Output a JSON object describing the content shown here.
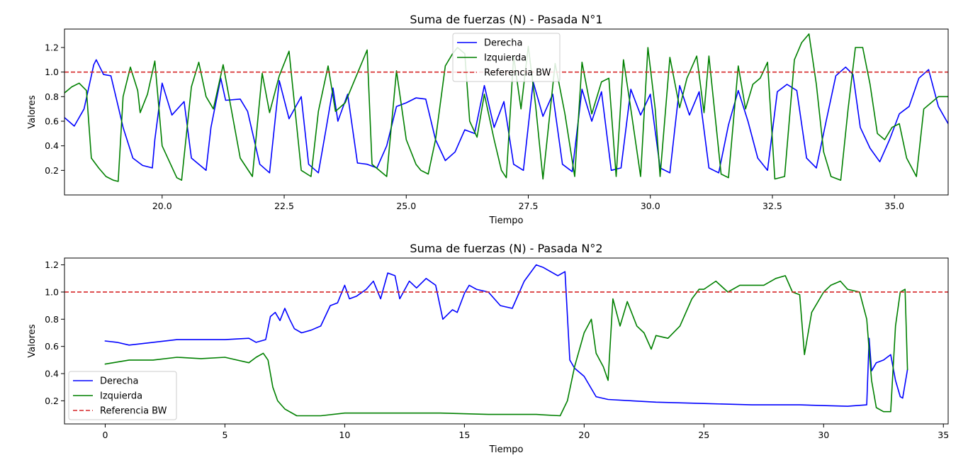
{
  "chart_data": [
    {
      "type": "line",
      "title": "Suma de fuerzas (N) - Pasada N°1",
      "xlabel": "Tiempo",
      "ylabel": "Valores",
      "xlim": [
        18.0,
        36.1
      ],
      "ylim": [
        0.0,
        1.35
      ],
      "xticks": [
        "20.0",
        "22.5",
        "25.0",
        "27.5",
        "30.0",
        "32.5",
        "35.0"
      ],
      "xtick_values": [
        20.0,
        22.5,
        25.0,
        27.5,
        30.0,
        32.5,
        35.0
      ],
      "yticks": [
        "0.2",
        "0.4",
        "0.6",
        "0.8",
        "1.0",
        "1.2"
      ],
      "ytick_values": [
        0.2,
        0.4,
        0.6,
        0.8,
        1.0,
        1.2
      ],
      "legend_position": "upper-center",
      "reference": {
        "name": "Referencia BW",
        "value": 1.0,
        "color": "#d62728",
        "style": "dashed"
      },
      "series": [
        {
          "name": "Derecha",
          "color": "#0000ff",
          "x": [
            18.0,
            18.2,
            18.4,
            18.6,
            18.65,
            18.8,
            18.95,
            19.1,
            19.2,
            19.4,
            19.6,
            19.8,
            19.85,
            20.0,
            20.2,
            20.45,
            20.6,
            20.9,
            21.0,
            21.2,
            21.3,
            21.6,
            21.75,
            22.0,
            22.2,
            22.4,
            22.6,
            22.85,
            23.0,
            23.2,
            23.35,
            23.5,
            23.6,
            23.8,
            24.0,
            24.2,
            24.4,
            24.6,
            24.8,
            25.0,
            25.2,
            25.4,
            25.6,
            25.8,
            26.0,
            26.2,
            26.4,
            26.6,
            26.8,
            27.0,
            27.2,
            27.4,
            27.6,
            27.8,
            28.0,
            28.2,
            28.4,
            28.6,
            28.8,
            29.0,
            29.2,
            29.4,
            29.6,
            29.8,
            30.0,
            30.2,
            30.4,
            30.6,
            30.8,
            31.0,
            31.2,
            31.4,
            31.6,
            31.8,
            32.0,
            32.2,
            32.4,
            32.6,
            32.8,
            33.0,
            33.2,
            33.4,
            33.6,
            33.8,
            34.0,
            34.15,
            34.3,
            34.5,
            34.7,
            34.9,
            35.1,
            35.3,
            35.5,
            35.7,
            35.9,
            36.1
          ],
          "y": [
            0.63,
            0.56,
            0.7,
            1.06,
            1.1,
            0.98,
            0.97,
            0.72,
            0.55,
            0.3,
            0.24,
            0.22,
            0.45,
            0.91,
            0.65,
            0.76,
            0.3,
            0.2,
            0.55,
            0.95,
            0.77,
            0.78,
            0.68,
            0.25,
            0.18,
            0.93,
            0.62,
            0.8,
            0.25,
            0.18,
            0.52,
            0.87,
            0.6,
            0.82,
            0.26,
            0.25,
            0.22,
            0.4,
            0.72,
            0.75,
            0.79,
            0.78,
            0.45,
            0.28,
            0.35,
            0.53,
            0.5,
            0.89,
            0.55,
            0.76,
            0.25,
            0.2,
            0.92,
            0.64,
            0.82,
            0.25,
            0.19,
            0.86,
            0.6,
            0.84,
            0.2,
            0.22,
            0.86,
            0.65,
            0.82,
            0.22,
            0.18,
            0.89,
            0.65,
            0.84,
            0.22,
            0.18,
            0.57,
            0.85,
            0.6,
            0.3,
            0.2,
            0.84,
            0.9,
            0.85,
            0.3,
            0.22,
            0.6,
            0.97,
            1.04,
            0.98,
            0.55,
            0.38,
            0.27,
            0.45,
            0.66,
            0.72,
            0.95,
            1.02,
            0.72,
            0.58
          ]
        },
        {
          "name": "Izquierda",
          "color": "#008000",
          "x": [
            18.0,
            18.15,
            18.3,
            18.45,
            18.55,
            18.7,
            18.85,
            19.0,
            19.1,
            19.2,
            19.35,
            19.5,
            19.55,
            19.7,
            19.85,
            20.0,
            20.3,
            20.4,
            20.6,
            20.75,
            20.9,
            21.05,
            21.25,
            21.6,
            21.85,
            22.05,
            22.2,
            22.4,
            22.6,
            22.85,
            23.05,
            23.2,
            23.4,
            23.55,
            23.75,
            24.2,
            24.3,
            24.6,
            24.8,
            25.0,
            25.2,
            25.3,
            25.45,
            25.6,
            25.8,
            25.95,
            26.05,
            26.2,
            26.3,
            26.45,
            26.6,
            26.8,
            26.95,
            27.05,
            27.2,
            27.35,
            27.5,
            27.65,
            27.8,
            28.05,
            28.25,
            28.45,
            28.6,
            28.8,
            29.0,
            29.15,
            29.3,
            29.45,
            29.6,
            29.8,
            29.95,
            30.1,
            30.2,
            30.4,
            30.6,
            30.75,
            30.95,
            31.1,
            31.2,
            31.45,
            31.6,
            31.8,
            31.95,
            32.1,
            32.25,
            32.4,
            32.55,
            32.75,
            32.95,
            33.1,
            33.25,
            33.4,
            33.55,
            33.7,
            33.9,
            34.05,
            34.2,
            34.35,
            34.5,
            34.65,
            34.8,
            34.95,
            35.1,
            35.25,
            35.45,
            35.6,
            35.75,
            35.9,
            36.1
          ],
          "y": [
            0.83,
            0.88,
            0.91,
            0.85,
            0.3,
            0.22,
            0.15,
            0.12,
            0.11,
            0.8,
            1.04,
            0.85,
            0.67,
            0.82,
            1.09,
            0.4,
            0.14,
            0.12,
            0.88,
            1.08,
            0.8,
            0.7,
            1.06,
            0.3,
            0.15,
            0.99,
            0.67,
            0.97,
            1.17,
            0.2,
            0.15,
            0.68,
            1.05,
            0.68,
            0.75,
            1.18,
            0.25,
            0.15,
            1.01,
            0.45,
            0.25,
            0.2,
            0.17,
            0.45,
            1.05,
            1.15,
            1.2,
            1.15,
            0.6,
            0.47,
            0.82,
            0.45,
            0.2,
            0.14,
            1.13,
            0.7,
            1.21,
            0.73,
            0.13,
            1.07,
            0.66,
            0.15,
            1.08,
            0.66,
            0.92,
            0.95,
            0.15,
            1.1,
            0.7,
            0.15,
            1.2,
            0.7,
            0.15,
            1.12,
            0.71,
            0.95,
            1.13,
            0.67,
            1.13,
            0.17,
            0.14,
            1.05,
            0.7,
            0.9,
            0.95,
            1.08,
            0.13,
            0.15,
            1.1,
            1.24,
            1.31,
            0.9,
            0.35,
            0.15,
            0.12,
            0.7,
            1.2,
            1.2,
            0.9,
            0.5,
            0.45,
            0.55,
            0.58,
            0.3,
            0.15,
            0.7,
            0.75,
            0.8,
            0.8
          ]
        }
      ]
    },
    {
      "type": "line",
      "title": "Suma de fuerzas (N) - Pasada N°2",
      "xlabel": "Tiempo",
      "ylabel": "Valores",
      "xlim": [
        -1.7,
        35.2
      ],
      "ylim": [
        0.03,
        1.25
      ],
      "xticks": [
        "0",
        "5",
        "10",
        "15",
        "20",
        "25",
        "30",
        "35"
      ],
      "xtick_values": [
        0,
        5,
        10,
        15,
        20,
        25,
        30,
        35
      ],
      "yticks": [
        "0.2",
        "0.4",
        "0.6",
        "0.8",
        "1.0",
        "1.2"
      ],
      "ytick_values": [
        0.2,
        0.4,
        0.6,
        0.8,
        1.0,
        1.2
      ],
      "legend_position": "lower-left",
      "reference": {
        "name": "Referencia BW",
        "value": 1.0,
        "color": "#d62728",
        "style": "dashed"
      },
      "series": [
        {
          "name": "Derecha",
          "color": "#0000ff",
          "x": [
            0.0,
            0.5,
            1.0,
            2.0,
            3.0,
            4.0,
            5.0,
            6.0,
            6.3,
            6.7,
            6.9,
            7.1,
            7.3,
            7.5,
            7.7,
            7.9,
            8.2,
            8.6,
            9.0,
            9.4,
            9.7,
            10.0,
            10.2,
            10.5,
            10.9,
            11.2,
            11.5,
            11.8,
            12.1,
            12.3,
            12.7,
            13.0,
            13.4,
            13.8,
            14.1,
            14.5,
            14.7,
            15.0,
            15.2,
            15.5,
            16.0,
            16.5,
            17.0,
            17.5,
            18.0,
            18.3,
            18.6,
            18.9,
            19.2,
            19.4,
            19.6,
            20.0,
            20.5,
            21.0,
            22.0,
            23.0,
            25.0,
            27.0,
            29.0,
            31.0,
            31.8,
            31.9,
            32.0,
            32.2,
            32.5,
            32.8,
            33.0,
            33.2,
            33.3,
            33.5
          ],
          "y": [
            0.64,
            0.63,
            0.61,
            0.63,
            0.65,
            0.65,
            0.65,
            0.66,
            0.63,
            0.65,
            0.82,
            0.85,
            0.79,
            0.88,
            0.8,
            0.73,
            0.7,
            0.72,
            0.75,
            0.9,
            0.92,
            1.05,
            0.95,
            0.97,
            1.02,
            1.08,
            0.95,
            1.14,
            1.12,
            0.95,
            1.08,
            1.03,
            1.1,
            1.05,
            0.8,
            0.87,
            0.85,
            0.99,
            1.05,
            1.02,
            1.0,
            0.9,
            0.88,
            1.08,
            1.2,
            1.18,
            1.15,
            1.12,
            1.15,
            0.5,
            0.44,
            0.38,
            0.23,
            0.21,
            0.2,
            0.19,
            0.18,
            0.17,
            0.17,
            0.16,
            0.17,
            0.66,
            0.42,
            0.48,
            0.5,
            0.54,
            0.35,
            0.23,
            0.22,
            0.43
          ]
        },
        {
          "name": "Izquierda",
          "color": "#008000",
          "x": [
            0.0,
            1.0,
            2.0,
            3.0,
            4.0,
            5.0,
            6.0,
            6.3,
            6.6,
            6.8,
            7.0,
            7.2,
            7.5,
            8.0,
            9.0,
            10.0,
            12.0,
            14.0,
            16.0,
            18.0,
            19.0,
            19.3,
            19.6,
            20.0,
            20.3,
            20.5,
            20.8,
            21.0,
            21.2,
            21.5,
            21.8,
            22.2,
            22.5,
            22.8,
            23.0,
            23.5,
            24.0,
            24.5,
            24.8,
            25.0,
            25.5,
            26.0,
            26.5,
            27.0,
            27.5,
            28.0,
            28.4,
            28.7,
            29.0,
            29.2,
            29.5,
            30.0,
            30.3,
            30.7,
            31.0,
            31.5,
            31.8,
            32.0,
            32.2,
            32.5,
            32.8,
            33.0,
            33.2,
            33.4,
            33.5
          ],
          "y": [
            0.47,
            0.5,
            0.5,
            0.52,
            0.51,
            0.52,
            0.48,
            0.52,
            0.55,
            0.5,
            0.3,
            0.2,
            0.14,
            0.09,
            0.09,
            0.11,
            0.11,
            0.11,
            0.1,
            0.1,
            0.09,
            0.2,
            0.45,
            0.7,
            0.8,
            0.55,
            0.45,
            0.35,
            0.95,
            0.75,
            0.93,
            0.75,
            0.7,
            0.58,
            0.68,
            0.66,
            0.75,
            0.95,
            1.02,
            1.02,
            1.08,
            1.0,
            1.05,
            1.05,
            1.05,
            1.1,
            1.12,
            1.0,
            0.98,
            0.54,
            0.85,
            1.0,
            1.05,
            1.08,
            1.02,
            1.0,
            0.8,
            0.35,
            0.15,
            0.12,
            0.12,
            0.75,
            1.0,
            1.02,
            0.43
          ]
        }
      ]
    }
  ]
}
